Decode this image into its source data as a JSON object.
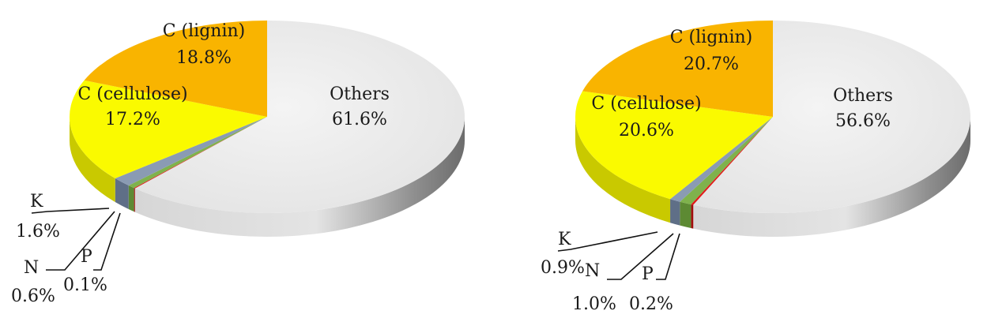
{
  "chart_data": [
    {
      "type": "pie",
      "style": "3d",
      "title": "",
      "series": [
        {
          "labels": [
            "Others",
            "C (lignin)",
            "C (cellulose)",
            "K",
            "N",
            "P"
          ],
          "values": [
            61.6,
            18.8,
            17.2,
            1.6,
            0.6,
            0.1
          ],
          "value_labels": [
            "61.6%",
            "18.8%",
            "17.2%",
            "1.6%",
            "0.6%",
            "0.1%"
          ]
        }
      ]
    },
    {
      "type": "pie",
      "style": "3d",
      "title": "",
      "series": [
        {
          "labels": [
            "Others",
            "C (lignin)",
            "C (cellulose)",
            "K",
            "N",
            "P"
          ],
          "values": [
            56.6,
            20.7,
            20.6,
            0.9,
            1.0,
            0.2
          ],
          "value_labels": [
            "56.6%",
            "20.7%",
            "20.6%",
            "0.9%",
            "1.0%",
            "0.2%"
          ]
        }
      ]
    }
  ],
  "colors": {
    "Others": "#ececec",
    "C (lignin)": "#f9b400",
    "C (cellulose)": "#fafa00",
    "K": "#8a9bb3",
    "N": "#7fb24c",
    "P": "#e11a1a"
  },
  "side_colors": {
    "Others": "#a9a9a9",
    "C (lignin)": "#c88f00",
    "C (cellulose)": "#c9c900",
    "K": "#5f6f87",
    "N": "#5d8a33",
    "P": "#a10d0d"
  }
}
